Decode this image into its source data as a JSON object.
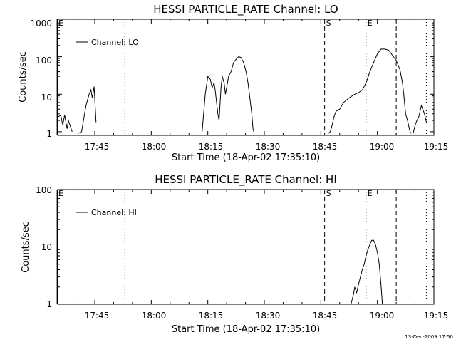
{
  "chart_data": [
    {
      "type": "line",
      "title": "HESSI PARTICLE_RATE Channel: LO",
      "xlabel": "Start Time (18-Apr-02 17:35:10)",
      "ylabel": "Counts/sec",
      "y_scale": "log",
      "ylim": [
        0.8,
        1000
      ],
      "xlim": [
        "17:35:10",
        "19:15"
      ],
      "x_tick_labels": [
        "17:45",
        "18:00",
        "18:15",
        "18:30",
        "18:45",
        "19:00",
        "19:15"
      ],
      "y_tick_labels": [
        "1",
        "10",
        "100",
        "1000"
      ],
      "legend": {
        "position": "top-left",
        "entries": [
          "Channel: LO"
        ]
      },
      "markers": [
        {
          "label": "E",
          "time": "17:35",
          "style": "solid"
        },
        {
          "label": "S",
          "time": "18:46",
          "style": "dashed"
        },
        {
          "label": "E",
          "time": "18:57",
          "style": "dotted"
        }
      ],
      "unlabeled_lines": [
        {
          "time": "17:53",
          "style": "dotted"
        },
        {
          "time": "19:05",
          "style": "dashed"
        },
        {
          "time": "19:13",
          "style": "dotted"
        }
      ],
      "series": [
        {
          "name": "Channel: LO",
          "segments": [
            [
              [
                "17:35:10",
                2.5
              ],
              [
                "17:36:00",
                2.7
              ],
              [
                "17:36:30",
                1.5
              ],
              [
                "17:37:00",
                2.8
              ],
              [
                "17:37:40",
                1.2
              ],
              [
                "17:38:00",
                2.0
              ],
              [
                "17:39:00",
                1.0
              ]
            ],
            [
              [
                "17:40:30",
                0.9
              ],
              [
                "17:41:30",
                1.0
              ],
              [
                "17:42:40",
                5.0
              ],
              [
                "17:43:30",
                10.0
              ],
              [
                "17:44:00",
                13.0
              ],
              [
                "17:44:20",
                8.0
              ],
              [
                "17:44:50",
                16.0
              ],
              [
                "17:45:20",
                1.8
              ]
            ],
            [
              [
                "18:13:30",
                1.0
              ],
              [
                "18:14:20",
                10.0
              ],
              [
                "18:15:00",
                30.0
              ],
              [
                "18:15:40",
                25.0
              ],
              [
                "18:16:10",
                15.0
              ],
              [
                "18:16:40",
                20.0
              ],
              [
                "18:17:00",
                12.0
              ],
              [
                "18:17:40",
                3.0
              ],
              [
                "18:18:00",
                2.0
              ],
              [
                "18:18:30",
                15.0
              ],
              [
                "18:18:50",
                30.0
              ],
              [
                "18:19:20",
                20.0
              ],
              [
                "18:19:40",
                10.0
              ],
              [
                "18:20:00",
                15.0
              ],
              [
                "18:20:30",
                30.0
              ],
              [
                "18:21:10",
                40.0
              ],
              [
                "18:21:50",
                70.0
              ],
              [
                "18:22:30",
                85.0
              ],
              [
                "18:23:10",
                100.0
              ],
              [
                "18:23:50",
                95.0
              ],
              [
                "18:24:30",
                70.0
              ],
              [
                "18:25:10",
                40.0
              ],
              [
                "18:25:40",
                20.0
              ],
              [
                "18:26:10",
                8.0
              ],
              [
                "18:26:40",
                3.0
              ],
              [
                "18:27:00",
                1.2
              ],
              [
                "18:27:20",
                0.9
              ]
            ],
            [
              [
                "18:47:00",
                0.9
              ],
              [
                "18:47:30",
                1.0
              ],
              [
                "18:48:00",
                1.5
              ],
              [
                "18:48:30",
                2.5
              ],
              [
                "18:49:00",
                3.5
              ],
              [
                "18:50:00",
                4.0
              ],
              [
                "18:51:00",
                6.0
              ],
              [
                "18:52:30",
                8.0
              ],
              [
                "18:54:00",
                10.0
              ],
              [
                "18:55:00",
                11.0
              ],
              [
                "18:56:00",
                13.0
              ],
              [
                "18:57:00",
                20.0
              ],
              [
                "18:58:00",
                40.0
              ],
              [
                "18:59:00",
                70.0
              ],
              [
                "19:00:00",
                120.0
              ],
              [
                "19:01:00",
                160.0
              ],
              [
                "19:02:00",
                160.0
              ],
              [
                "19:03:00",
                150.0
              ],
              [
                "19:04:00",
                110.0
              ],
              [
                "19:05:00",
                80.0
              ],
              [
                "19:06:00",
                45.0
              ],
              [
                "19:06:40",
                20.0
              ],
              [
                "19:07:00",
                10.0
              ],
              [
                "19:07:30",
                3.0
              ],
              [
                "19:08:00",
                2.0
              ],
              [
                "19:08:40",
                1.0
              ],
              [
                "19:09:00",
                0.9
              ]
            ],
            [
              [
                "19:09:30",
                0.9
              ],
              [
                "19:10:00",
                1.5
              ],
              [
                "19:10:30",
                2.0
              ],
              [
                "19:11:00",
                2.5
              ],
              [
                "19:11:40",
                5.0
              ],
              [
                "19:12:30",
                3.0
              ],
              [
                "19:13:00",
                1.8
              ]
            ]
          ]
        }
      ]
    },
    {
      "type": "line",
      "title": "HESSI PARTICLE_RATE Channel: HI",
      "xlabel": "Start Time (18-Apr-02 17:35:10)",
      "ylabel": "Counts/sec",
      "y_scale": "log",
      "ylim": [
        1,
        100
      ],
      "xlim": [
        "17:35:10",
        "19:15"
      ],
      "x_tick_labels": [
        "17:45",
        "18:00",
        "18:15",
        "18:30",
        "18:45",
        "19:00",
        "19:15"
      ],
      "y_tick_labels": [
        "1",
        "10",
        "100"
      ],
      "legend": {
        "position": "top-left",
        "entries": [
          "Channel: HI"
        ]
      },
      "markers": [
        {
          "label": "E",
          "time": "17:35",
          "style": "solid"
        },
        {
          "label": "S",
          "time": "18:46",
          "style": "dashed"
        },
        {
          "label": "E",
          "time": "18:57",
          "style": "dotted"
        }
      ],
      "unlabeled_lines": [
        {
          "time": "17:53",
          "style": "dotted"
        },
        {
          "time": "19:05",
          "style": "dashed"
        },
        {
          "time": "19:13",
          "style": "dotted"
        }
      ],
      "series": [
        {
          "name": "Channel: HI",
          "segments": [
            [
              [
                "18:53:00",
                1.0
              ],
              [
                "18:53:40",
                1.5
              ],
              [
                "18:54:00",
                2.0
              ],
              [
                "18:54:30",
                1.6
              ],
              [
                "18:55:00",
                2.2
              ],
              [
                "18:55:30",
                3.0
              ],
              [
                "18:56:00",
                4.0
              ],
              [
                "18:56:30",
                5.0
              ],
              [
                "18:57:00",
                7.0
              ],
              [
                "18:57:30",
                9.0
              ],
              [
                "18:58:00",
                11.0
              ],
              [
                "18:58:30",
                13.0
              ],
              [
                "18:59:00",
                13.0
              ],
              [
                "18:59:30",
                11.0
              ],
              [
                "19:00:00",
                8.0
              ],
              [
                "19:00:30",
                5.0
              ],
              [
                "19:01:00",
                2.0
              ],
              [
                "19:01:20",
                1.0
              ]
            ]
          ]
        }
      ]
    }
  ],
  "footer": {
    "timestamp": "13-Dec-2009 17:50"
  }
}
